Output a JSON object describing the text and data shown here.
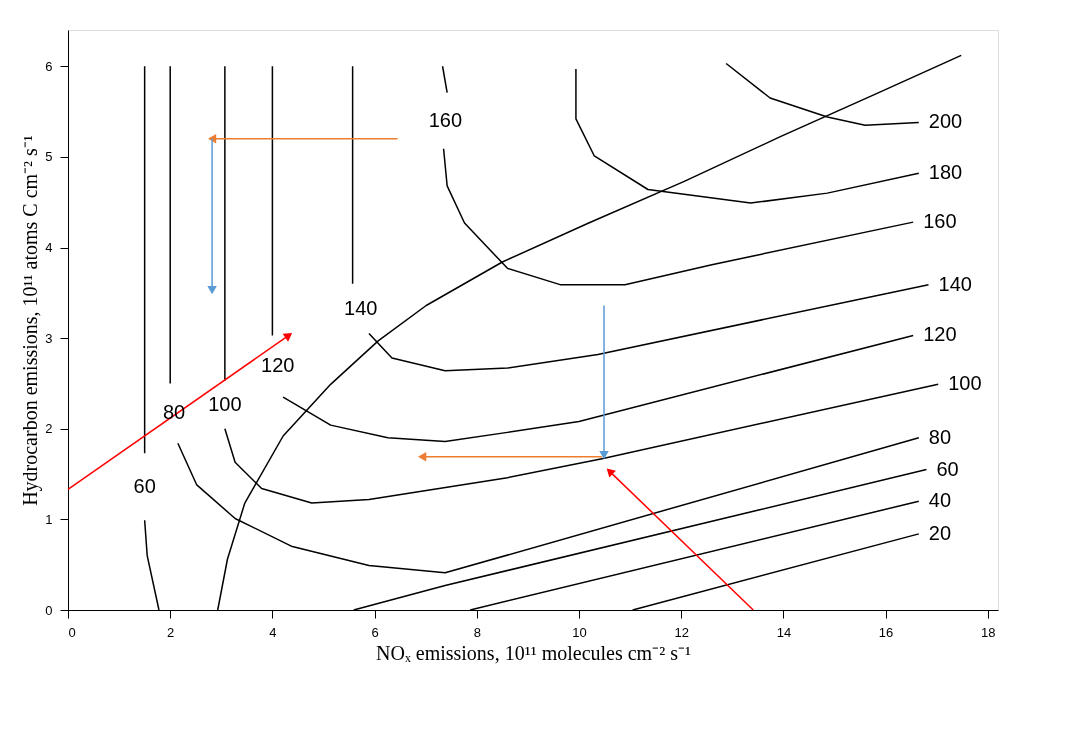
{
  "chart_data": {
    "type": "line",
    "xlabel": "NOₓ emissions, 10¹¹ molecules cm⁻² s⁻¹",
    "ylabel": "Hydrocarbon emissions, 10¹¹ atoms C cm⁻² s⁻¹",
    "xlim": [
      0,
      18.2
    ],
    "ylim": [
      0,
      6.4
    ],
    "xticks": [
      0,
      2,
      4,
      6,
      8,
      10,
      12,
      14,
      16,
      18
    ],
    "yticks": [
      0,
      1,
      2,
      3,
      4,
      5,
      6
    ],
    "grid": false,
    "marker": "none",
    "line_style": "solid",
    "series": [
      {
        "name": "60",
        "color": "#000000",
        "x": [
          1.78,
          1.55,
          1.5,
          null,
          1.5,
          1.5
        ],
        "values": [
          0,
          0.6,
          0.99,
          null,
          1.73,
          6.0
        ]
      },
      {
        "name": "80",
        "color": "#000000",
        "x": [
          2.0,
          2.0,
          null,
          2.15,
          2.52,
          3.27,
          4.39,
          5.89,
          7.38,
          16.65
        ],
        "values": [
          6.0,
          2.5,
          null,
          1.84,
          1.38,
          1.01,
          0.7,
          0.49,
          0.41,
          1.9
        ]
      },
      {
        "name": "100",
        "color": "#000000",
        "x": [
          3.07,
          3.07,
          null,
          3.07,
          3.27,
          3.79,
          4.77,
          5.89,
          8.6,
          10.45,
          17.03
        ],
        "values": [
          6.0,
          2.53,
          null,
          2.0,
          1.63,
          1.34,
          1.18,
          1.22,
          1.46,
          1.67,
          2.49
        ]
      },
      {
        "name": "120",
        "color": "#000000",
        "x": [
          4.0,
          4.0,
          null,
          4.21,
          5.14,
          6.26,
          7.38,
          8.6,
          10.0,
          16.54
        ],
        "values": [
          6.0,
          3.03,
          null,
          2.35,
          2.04,
          1.9,
          1.86,
          1.96,
          2.08,
          3.03
        ]
      },
      {
        "name": "140",
        "color": "#000000",
        "x": [
          5.57,
          5.57,
          null,
          5.89,
          6.34,
          7.38,
          8.6,
          10.37,
          16.84
        ],
        "values": [
          6.0,
          3.6,
          null,
          3.05,
          2.78,
          2.64,
          2.67,
          2.82,
          3.59
        ]
      },
      {
        "name": "160",
        "color": "#000000",
        "x": [
          7.33,
          7.42,
          null,
          7.35,
          7.42,
          7.76,
          8.6,
          9.63,
          10.9,
          12.6,
          16.54
        ],
        "values": [
          6.0,
          5.71,
          null,
          5.09,
          4.68,
          4.27,
          3.77,
          3.59,
          3.59,
          3.81,
          4.28
        ]
      },
      {
        "name": "180",
        "color": "#000000",
        "x": [
          9.94,
          9.94,
          10.3,
          11.35,
          13.36,
          14.86,
          16.65
        ],
        "values": [
          5.97,
          5.42,
          5.01,
          4.64,
          4.49,
          4.6,
          4.82
        ]
      },
      {
        "name": "200",
        "color": "#000000",
        "x": [
          12.88,
          13.74,
          14.86,
          15.6,
          16.65
        ],
        "values": [
          6.03,
          5.65,
          5.44,
          5.35,
          5.38
        ]
      },
      {
        "name": "60",
        "color": "#000000",
        "x": [
          5.59,
          7.38,
          16.8
        ],
        "values": [
          0,
          0.27,
          1.55
        ]
      },
      {
        "name": "40",
        "color": "#000000",
        "x": [
          7.87,
          16.65
        ],
        "values": [
          0,
          1.2
        ]
      },
      {
        "name": "20",
        "color": "#000000",
        "x": [
          11.05,
          16.65
        ],
        "values": [
          0,
          0.84
        ]
      },
      {
        "color": "#000000",
        "x": [
          2.93,
          3.12,
          3.46,
          4.21,
          5.14,
          6.07,
          7.01,
          8.5,
          10.19,
          12.06,
          13.93,
          15.79,
          17.48
        ],
        "values": [
          0,
          0.56,
          1.18,
          1.92,
          2.49,
          2.97,
          3.36,
          3.84,
          4.27,
          4.73,
          5.22,
          5.69,
          6.12
        ]
      },
      {
        "color": "#ed7d31",
        "marker": "triangle",
        "x": [
          6.45,
          2.82
        ],
        "values": [
          5.2,
          5.2
        ]
      },
      {
        "color": "#5b9bd5",
        "marker": "triangle",
        "x": [
          2.82,
          2.82
        ],
        "values": [
          5.2,
          3.53
        ]
      },
      {
        "color": "#5b9bd5",
        "marker": "triangle",
        "x": [
          10.49,
          10.49
        ],
        "values": [
          3.36,
          1.71
        ]
      },
      {
        "color": "#ed7d31",
        "marker": "triangle",
        "x": [
          10.45,
          6.93
        ],
        "values": [
          1.69,
          1.69
        ]
      },
      {
        "color": "#ff0000",
        "marker": "triangle",
        "x": [
          0,
          4.32
        ],
        "values": [
          1.33,
          3.03
        ]
      },
      {
        "color": "#ff0000",
        "marker": "triangle",
        "x": [
          13.41,
          10.6
        ],
        "values": [
          0,
          1.53
        ]
      }
    ]
  }
}
